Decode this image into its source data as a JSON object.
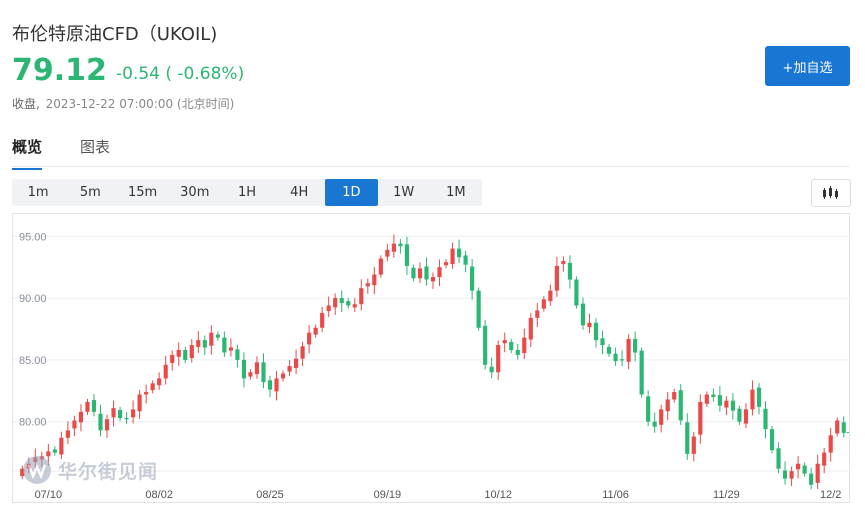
{
  "header": {
    "title": "布伦特原油CFD（UKOIL)",
    "price": "79.12",
    "change": "-0.54 ( -0.68%)",
    "close_label": "收盘,",
    "close_time": "2023-12-22 07:00:00 (北京时间)",
    "add_button": "+加自选"
  },
  "tabs": [
    {
      "label": "概览",
      "active": true
    },
    {
      "label": "图表",
      "active": false
    }
  ],
  "periods": [
    {
      "label": "1m",
      "active": false
    },
    {
      "label": "5m",
      "active": false
    },
    {
      "label": "15m",
      "active": false
    },
    {
      "label": "30m",
      "active": false
    },
    {
      "label": "1H",
      "active": false
    },
    {
      "label": "4H",
      "active": false
    },
    {
      "label": "1D",
      "active": true
    },
    {
      "label": "1W",
      "active": false
    },
    {
      "label": "1M",
      "active": false
    }
  ],
  "chart_type_icon": "candlestick-chart-icon",
  "watermark": "华尔街见闻",
  "colors": {
    "up": "#e84a4a",
    "down": "#2bb673",
    "accent": "#1976d2"
  },
  "chart_data": {
    "type": "candlestick",
    "y_ticks": [
      "95.00",
      "90.00",
      "85.00",
      "80.00"
    ],
    "y_tick_values": [
      95,
      90,
      85,
      80
    ],
    "ylim": [
      74.8,
      96.8
    ],
    "x_ticks": [
      {
        "label": "07/10",
        "index": 4
      },
      {
        "label": "08/02",
        "index": 21
      },
      {
        "label": "08/25",
        "index": 38
      },
      {
        "label": "09/19",
        "index": 56
      },
      {
        "label": "10/12",
        "index": 73
      },
      {
        "label": "11/06",
        "index": 91
      },
      {
        "label": "11/29",
        "index": 108
      },
      {
        "label": "12/2",
        "index": 124
      }
    ],
    "grid": true,
    "last_price": 79.12,
    "closes": [
      76.2,
      76.6,
      77.1,
      77.2,
      77.6,
      77.5,
      78.7,
      79.3,
      80.1,
      80.8,
      81.6,
      80.8,
      79.3,
      80.2,
      81.1,
      80.3,
      80.2,
      81.0,
      82.2,
      82.4,
      83.1,
      83.5,
      84.6,
      85.4,
      85.8,
      85.0,
      86.2,
      86.6,
      86.0,
      87.2,
      86.8,
      85.6,
      86.0,
      85.0,
      83.5,
      84.0,
      84.8,
      83.2,
      82.6,
      83.5,
      83.9,
      84.5,
      85.1,
      86.1,
      87.2,
      87.6,
      88.8,
      89.4,
      90.0,
      89.6,
      89.4,
      89.5,
      90.8,
      91.2,
      91.9,
      93.2,
      93.9,
      94.4,
      94.2,
      92.6,
      91.6,
      92.4,
      91.5,
      91.7,
      92.5,
      92.9,
      94.0,
      93.3,
      92.7,
      90.6,
      87.6,
      84.6,
      84.0,
      86.2,
      86.6,
      85.8,
      85.4,
      86.8,
      88.4,
      89.0,
      89.9,
      90.6,
      92.6,
      93.0,
      91.5,
      89.4,
      87.8,
      88.0,
      86.6,
      86.2,
      85.5,
      84.9,
      85.0,
      86.7,
      85.6,
      82.2,
      80.0,
      79.6,
      81.0,
      81.8,
      82.4,
      80.1,
      77.4,
      78.8,
      81.6,
      82.2,
      82.0,
      81.3,
      81.7,
      80.9,
      80.0,
      81.0,
      82.6,
      81.2,
      79.4,
      77.7,
      76.2,
      75.4,
      76.0,
      76.6,
      75.8,
      74.9,
      76.6,
      77.5,
      78.9,
      80.1,
      79.1
    ]
  }
}
